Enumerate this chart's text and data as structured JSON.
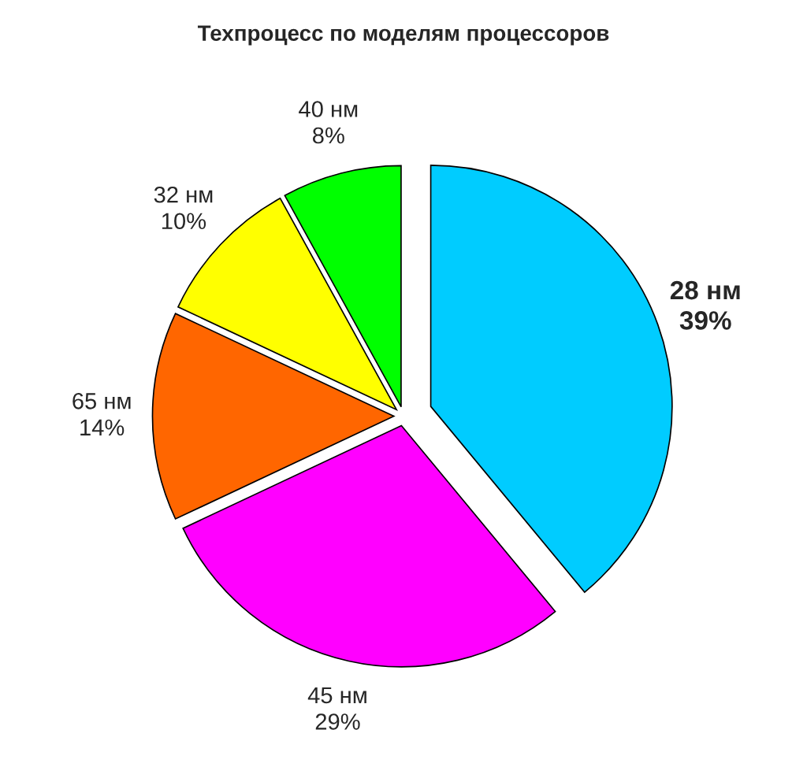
{
  "chart_data": {
    "type": "pie",
    "title": "Техпроцесс по моделям процессоров",
    "categories": [
      "28 нм",
      "45 нм",
      "65 нм",
      "32 нм",
      "40 нм"
    ],
    "values": [
      39,
      29,
      14,
      10,
      8
    ],
    "value_labels": [
      "39%",
      "29%",
      "14%",
      "10%",
      "8%"
    ],
    "colors": [
      "#00ccff",
      "#ff00ff",
      "#ff6600",
      "#ffff00",
      "#00ff00"
    ]
  }
}
